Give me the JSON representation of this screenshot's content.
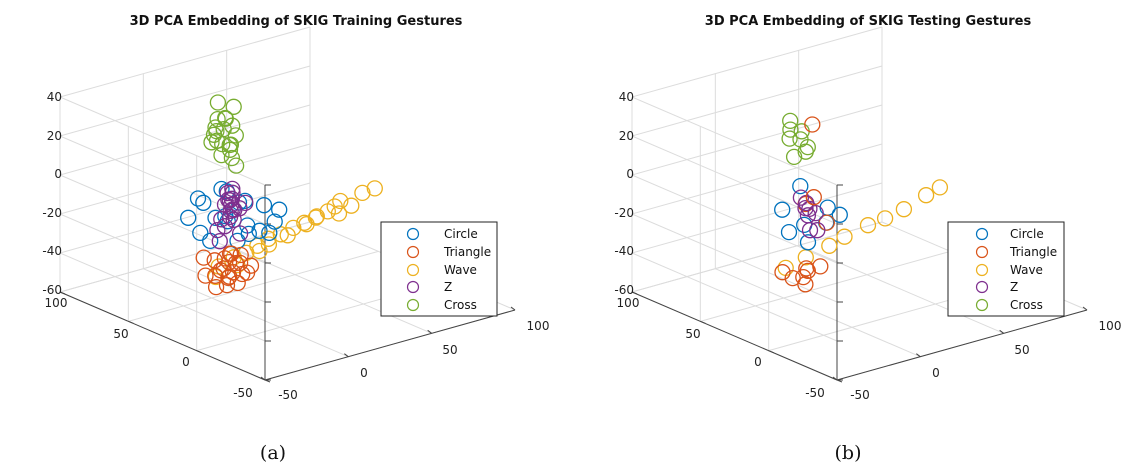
{
  "panels": [
    {
      "caption": "(a)",
      "z_ticks": [
        "40",
        "20",
        "0",
        "-20",
        "-40",
        "-60"
      ],
      "x_ticks": [
        "100",
        "50",
        "0",
        "-50"
      ],
      "y_ticks": [
        "-50",
        "0",
        "50",
        "100"
      ],
      "legend": [
        "Circle",
        "Triangle",
        "Wave",
        "Z",
        "Cross"
      ]
    },
    {
      "caption": "(b)",
      "z_ticks": [
        "40",
        "20",
        "0",
        "-20",
        "-40",
        "-60"
      ],
      "x_ticks": [
        "100",
        "50",
        "0",
        "-50"
      ],
      "y_ticks": [
        "-50",
        "0",
        "50",
        "100"
      ],
      "legend": [
        "Circle",
        "Triangle",
        "Wave",
        "Z",
        "Cross"
      ]
    }
  ],
  "chart_data": [
    {
      "type": "scatter",
      "title": "3D PCA Embedding of SKIG Training Gestures",
      "projection": "3d",
      "xlim": [
        -50,
        100
      ],
      "ylim": [
        -50,
        100
      ],
      "zlim": [
        -60,
        40
      ],
      "grid": true,
      "legend_position": "bottom-right",
      "colors": {
        "Circle": "#0072BD",
        "Triangle": "#D95319",
        "Wave": "#EDB120",
        "Z": "#7E2F8E",
        "Cross": "#77AC30"
      },
      "series": [
        {
          "name": "Circle",
          "points": [
            [
              0,
              -5,
              -10
            ],
            [
              10,
              0,
              -15
            ],
            [
              20,
              5,
              -18
            ],
            [
              -5,
              10,
              -8
            ],
            [
              15,
              -10,
              -12
            ],
            [
              30,
              10,
              -20
            ],
            [
              5,
              5,
              -5
            ],
            [
              25,
              -5,
              -22
            ],
            [
              -10,
              0,
              -12
            ],
            [
              35,
              0,
              -15
            ],
            [
              20,
              15,
              -10
            ],
            [
              10,
              -15,
              -20
            ],
            [
              0,
              20,
              -15
            ],
            [
              30,
              -15,
              -8
            ],
            [
              15,
              10,
              -25
            ],
            [
              -5,
              -10,
              -18
            ],
            [
              25,
              20,
              -12
            ],
            [
              40,
              5,
              -10
            ],
            [
              5,
              -5,
              -28
            ],
            [
              20,
              0,
              -5
            ]
          ]
        },
        {
          "name": "Triangle",
          "points": [
            [
              -30,
              30,
              -62
            ],
            [
              -25,
              35,
              -58
            ],
            [
              -35,
              25,
              -65
            ],
            [
              -28,
              40,
              -60
            ],
            [
              -20,
              32,
              -66
            ],
            [
              -32,
              38,
              -56
            ],
            [
              -22,
              28,
              -63
            ],
            [
              -38,
              33,
              -60
            ],
            [
              -26,
              24,
              -68
            ],
            [
              -30,
              42,
              -57
            ],
            [
              -18,
              36,
              -61
            ],
            [
              -34,
              30,
              -66
            ],
            [
              -24,
              38,
              -64
            ],
            [
              -40,
              28,
              -58
            ],
            [
              -20,
              40,
              -59
            ],
            [
              -29,
              33,
              -70
            ],
            [
              -36,
              40,
              -62
            ],
            [
              -23,
              26,
              -58
            ],
            [
              -31,
              36,
              -67
            ],
            [
              -27,
              30,
              -55
            ],
            [
              50,
              -30,
              -15
            ],
            [
              40,
              -20,
              -30
            ]
          ]
        },
        {
          "name": "Wave",
          "points": [
            [
              70,
              -30,
              -5
            ],
            [
              75,
              -20,
              0
            ],
            [
              80,
              -10,
              5
            ],
            [
              85,
              0,
              10
            ],
            [
              90,
              10,
              12
            ],
            [
              65,
              -40,
              -10
            ],
            [
              72,
              -25,
              -2
            ],
            [
              78,
              -15,
              3
            ],
            [
              83,
              -5,
              8
            ],
            [
              88,
              5,
              15
            ],
            [
              60,
              -45,
              -15
            ],
            [
              68,
              -35,
              -8
            ],
            [
              92,
              15,
              18
            ],
            [
              76,
              -28,
              -3
            ],
            [
              86,
              -8,
              9
            ],
            [
              70,
              -42,
              -12
            ],
            [
              80,
              -20,
              1
            ],
            [
              90,
              0,
              14
            ],
            [
              64,
              -50,
              -18
            ],
            [
              84,
              -12,
              6
            ],
            [
              74,
              -32,
              -6
            ],
            [
              95,
              20,
              20
            ],
            [
              20,
              60,
              -25
            ]
          ]
        },
        {
          "name": "Z",
          "points": [
            [
              -10,
              20,
              -20
            ],
            [
              -5,
              15,
              -15
            ],
            [
              0,
              10,
              -12
            ],
            [
              -15,
              25,
              -25
            ],
            [
              -8,
              18,
              -22
            ],
            [
              -3,
              12,
              -10
            ],
            [
              -20,
              30,
              -28
            ],
            [
              -12,
              22,
              -18
            ],
            [
              -6,
              16,
              -24
            ],
            [
              0,
              8,
              -14
            ],
            [
              -18,
              28,
              -32
            ],
            [
              -10,
              14,
              -26
            ],
            [
              -14,
              24,
              -16
            ],
            [
              -4,
              20,
              -20
            ],
            [
              -22,
              26,
              -36
            ],
            [
              -8,
              10,
              -30
            ],
            [
              -16,
              18,
              -40
            ],
            [
              -2,
              14,
              -8
            ],
            [
              -12,
              30,
              -22
            ],
            [
              -6,
              22,
              -34
            ]
          ]
        },
        {
          "name": "Cross",
          "points": [
            [
              -40,
              40,
              5
            ],
            [
              -35,
              35,
              0
            ],
            [
              -45,
              45,
              8
            ],
            [
              -38,
              42,
              -3
            ],
            [
              -42,
              38,
              10
            ],
            [
              -36,
              44,
              2
            ],
            [
              -44,
              36,
              -2
            ],
            [
              -40,
              46,
              15
            ],
            [
              -34,
              40,
              -8
            ],
            [
              -46,
              40,
              4
            ],
            [
              -38,
              34,
              6
            ],
            [
              -42,
              46,
              -5
            ],
            [
              -36,
              38,
              12
            ],
            [
              -44,
              42,
              -10
            ],
            [
              -40,
              36,
              0
            ],
            [
              -37,
              45,
              -14
            ],
            [
              -43,
              39,
              18
            ],
            [
              -39,
              43,
              -6
            ],
            [
              -41,
              35,
              3
            ],
            [
              -35,
              41,
              8
            ]
          ]
        }
      ]
    },
    {
      "type": "scatter",
      "title": "3D PCA Embedding of SKIG Testing Gestures",
      "projection": "3d",
      "xlim": [
        -50,
        100
      ],
      "ylim": [
        -50,
        100
      ],
      "zlim": [
        -60,
        40
      ],
      "grid": true,
      "legend_position": "bottom-right",
      "colors": {
        "Circle": "#0072BD",
        "Triangle": "#D95319",
        "Wave": "#EDB120",
        "Z": "#7E2F8E",
        "Cross": "#77AC30"
      },
      "series": [
        {
          "name": "Circle",
          "points": [
            [
              5,
              -5,
              -12
            ],
            [
              15,
              0,
              -18
            ],
            [
              25,
              5,
              -15
            ],
            [
              0,
              10,
              -5
            ],
            [
              30,
              -10,
              -20
            ],
            [
              20,
              10,
              -10
            ],
            [
              10,
              -5,
              -22
            ],
            [
              35,
              5,
              -8
            ]
          ]
        },
        {
          "name": "Triangle",
          "points": [
            [
              -25,
              35,
              -62
            ],
            [
              -30,
              30,
              -66
            ],
            [
              -22,
              40,
              -60
            ],
            [
              -35,
              28,
              -64
            ],
            [
              -28,
              36,
              -70
            ],
            [
              -20,
              30,
              -58
            ],
            [
              -32,
              38,
              -68
            ],
            [
              -40,
              50,
              5
            ],
            [
              -5,
              30,
              -30
            ],
            [
              10,
              5,
              -10
            ],
            [
              -45,
              55,
              -35
            ]
          ]
        },
        {
          "name": "Wave",
          "points": [
            [
              70,
              -30,
              -5
            ],
            [
              80,
              -15,
              5
            ],
            [
              88,
              0,
              12
            ],
            [
              92,
              10,
              18
            ],
            [
              65,
              -40,
              -10
            ],
            [
              75,
              -25,
              0
            ],
            [
              84,
              -8,
              8
            ],
            [
              60,
              -48,
              -15
            ],
            [
              96,
              15,
              22
            ]
          ]
        },
        {
          "name": "Z",
          "points": [
            [
              -8,
              22,
              -22
            ],
            [
              -3,
              16,
              -16
            ],
            [
              -14,
              26,
              -28
            ],
            [
              -6,
              18,
              -20
            ],
            [
              -12,
              30,
              -36
            ],
            [
              -2,
              12,
              -12
            ],
            [
              -18,
              34,
              -30
            ],
            [
              -10,
              24,
              -34
            ]
          ]
        },
        {
          "name": "Cross",
          "points": [
            [
              -38,
              42,
              4
            ],
            [
              -42,
              38,
              0
            ],
            [
              -36,
              44,
              -4
            ],
            [
              -44,
              40,
              8
            ],
            [
              -40,
              46,
              -8
            ],
            [
              -34,
              38,
              2
            ],
            [
              -46,
              44,
              -12
            ],
            [
              -39,
              36,
              6
            ]
          ]
        }
      ]
    }
  ]
}
